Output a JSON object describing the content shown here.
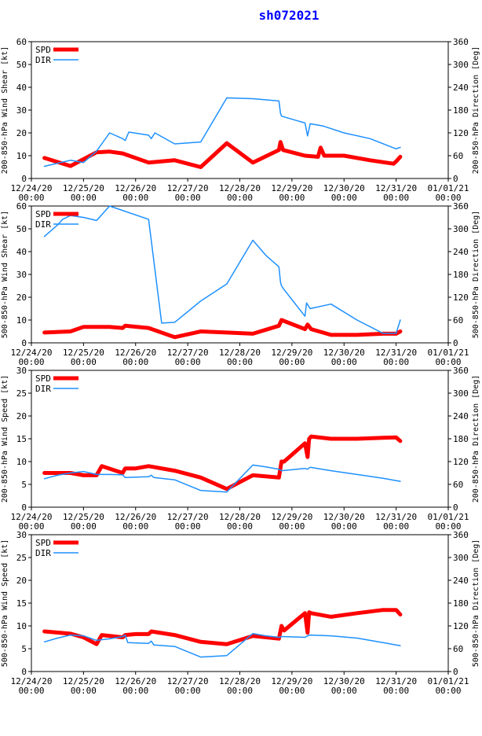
{
  "page_title": "sh072021",
  "colors": {
    "spd": "#ff0000",
    "dir": "#1e90ff",
    "title": "#0000ff",
    "axis": "#000000"
  },
  "x_ticks": [
    "12/24/20",
    "12/25/20",
    "12/26/20",
    "12/27/20",
    "12/28/20",
    "12/29/20",
    "12/30/20",
    "12/31/20",
    "01/01/21"
  ],
  "x_tick_sub": "00:00",
  "legend": {
    "spd": "SPD",
    "dir": "DIR"
  },
  "chart_data": [
    {
      "type": "line",
      "title": "",
      "ylabel": "200-850-hPa Wind Shear [kt]",
      "y2label": "200-850-hPa Direction [Deg]",
      "xlim": [
        0,
        8
      ],
      "ylim": [
        0,
        60
      ],
      "y2lim": [
        0,
        360
      ],
      "y_ticks": [
        "0",
        "10",
        "20",
        "30",
        "40",
        "50",
        "60"
      ],
      "y2_ticks": [
        "0",
        "60",
        "120",
        "180",
        "240",
        "300",
        "360"
      ],
      "series": [
        {
          "name": "SPD",
          "axis": "left",
          "x": [
            0.25,
            0.75,
            1.25,
            1.5,
            1.75,
            2.25,
            2.75,
            3.25,
            3.75,
            4.25,
            4.75,
            4.78,
            4.83,
            5.25,
            5.5,
            5.55,
            5.62,
            6.0,
            6.5,
            6.95,
            7.0,
            7.08
          ],
          "values": [
            9,
            5.5,
            11.5,
            11.8,
            11,
            7,
            8,
            5,
            15.5,
            7,
            12.5,
            16,
            12.5,
            10,
            9.5,
            13.5,
            10,
            10,
            8,
            6.5,
            7.5,
            9.5
          ]
        },
        {
          "name": "DIR",
          "axis": "right",
          "x": [
            0.25,
            0.75,
            1.0,
            1.25,
            1.5,
            1.75,
            1.8,
            1.87,
            2.25,
            2.3,
            2.37,
            2.75,
            3.25,
            3.75,
            4.25,
            4.75,
            4.78,
            4.8,
            5.25,
            5.3,
            5.35,
            5.6,
            6.0,
            6.5,
            7.0,
            7.08
          ],
          "values": [
            32,
            48,
            42,
            72,
            120,
            105,
            100,
            122,
            114,
            105,
            120,
            91,
            96,
            212,
            210,
            204,
            172,
            164,
            146,
            112,
            144,
            138,
            120,
            105,
            78,
            82
          ]
        }
      ]
    },
    {
      "type": "line",
      "title": "",
      "ylabel": "500-850-hPa Wind Shear [kt]",
      "y2label": "500-850-hPa Direction [Deg]",
      "xlim": [
        0,
        8
      ],
      "ylim": [
        0,
        60
      ],
      "y2lim": [
        0,
        360
      ],
      "y_ticks": [
        "0",
        "10",
        "20",
        "30",
        "40",
        "50",
        "60"
      ],
      "y2_ticks": [
        "0",
        "60",
        "120",
        "180",
        "240",
        "300",
        "360"
      ],
      "series": [
        {
          "name": "SPD",
          "axis": "left",
          "x": [
            0.25,
            0.75,
            1.0,
            1.5,
            1.75,
            1.8,
            2.25,
            2.75,
            3.25,
            3.75,
            4.25,
            4.75,
            4.8,
            5.25,
            5.3,
            5.37,
            5.75,
            6.25,
            6.75,
            7.0,
            7.08
          ],
          "values": [
            4.5,
            5,
            7,
            7,
            6.5,
            7.5,
            6.5,
            2.5,
            5,
            4.5,
            4,
            7.5,
            10,
            6,
            8,
            6,
            3.5,
            3.5,
            4,
            4,
            5
          ]
        },
        {
          "name": "DIR",
          "axis": "right",
          "x": [
            0.25,
            0.5,
            0.6,
            0.75,
            1.0,
            1.25,
            1.5,
            2.25,
            2.5,
            2.75,
            3.25,
            3.75,
            4.25,
            4.5,
            4.75,
            4.78,
            4.8,
            4.85,
            5.25,
            5.28,
            5.35,
            5.75,
            6.25,
            6.75,
            7.0,
            7.08
          ],
          "values": [
            280,
            310,
            325,
            335,
            330,
            322,
            360,
            325,
            52,
            54,
            110,
            155,
            270,
            230,
            200,
            160,
            150,
            140,
            70,
            105,
            90,
            102,
            60,
            25,
            25,
            60
          ]
        }
      ]
    },
    {
      "type": "line",
      "title": "",
      "ylabel": "200-850-hPa Wind Speed [kt]",
      "y2label": "200-850-hPa Direction [Deg]",
      "xlim": [
        0,
        8
      ],
      "ylim": [
        0,
        30
      ],
      "y2lim": [
        0,
        360
      ],
      "y_ticks": [
        "0",
        "5",
        "10",
        "15",
        "20",
        "25",
        "30"
      ],
      "y2_ticks": [
        "0",
        "60",
        "120",
        "180",
        "240",
        "300",
        "360"
      ],
      "series": [
        {
          "name": "SPD",
          "axis": "left",
          "x": [
            0.25,
            0.75,
            1.0,
            1.25,
            1.35,
            1.75,
            1.8,
            2.0,
            2.25,
            2.75,
            3.25,
            3.75,
            4.25,
            4.75,
            4.8,
            4.85,
            5.25,
            5.3,
            5.33,
            5.37,
            5.75,
            6.25,
            6.75,
            7.0,
            7.08
          ],
          "values": [
            7.5,
            7.5,
            7,
            7,
            9,
            7.5,
            8.5,
            8.5,
            9,
            8,
            6.5,
            4,
            7,
            6.5,
            10,
            10,
            14,
            11,
            15,
            15.5,
            15,
            15,
            15.2,
            15.3,
            14.5
          ]
        },
        {
          "name": "DIR",
          "axis": "right",
          "x": [
            0.25,
            0.5,
            0.75,
            1.0,
            1.25,
            1.5,
            1.75,
            1.8,
            2.25,
            2.3,
            2.35,
            2.75,
            3.25,
            3.75,
            4.25,
            4.5,
            4.75,
            4.8,
            5.25,
            5.3,
            5.35,
            5.75,
            6.25,
            6.75,
            7.0,
            7.08
          ],
          "values": [
            75,
            84,
            90,
            94,
            86,
            86,
            85,
            78,
            80,
            84,
            78,
            72,
            44,
            40,
            111,
            106,
            100,
            96,
            102,
            100,
            105,
            96,
            86,
            76,
            70,
            68
          ]
        }
      ]
    },
    {
      "type": "line",
      "title": "",
      "ylabel": "500-850-hPa Wind Speed [kt]",
      "y2label": "500-850-hPa Direction [Deg]",
      "xlim": [
        0,
        8
      ],
      "ylim": [
        0,
        30
      ],
      "y2lim": [
        0,
        360
      ],
      "y_ticks": [
        "0",
        "5",
        "10",
        "15",
        "20",
        "25",
        "30"
      ],
      "y2_ticks": [
        "0",
        "60",
        "120",
        "180",
        "240",
        "300",
        "360"
      ],
      "series": [
        {
          "name": "SPD",
          "axis": "left",
          "x": [
            0.25,
            0.75,
            1.0,
            1.25,
            1.35,
            1.75,
            1.8,
            2.0,
            2.25,
            2.3,
            2.75,
            3.25,
            3.75,
            4.25,
            4.75,
            4.8,
            4.85,
            5.25,
            5.3,
            5.33,
            5.37,
            5.75,
            6.25,
            6.75,
            7.0,
            7.08
          ],
          "values": [
            8.8,
            8.3,
            7.5,
            6,
            8,
            7.5,
            8,
            8.2,
            8.2,
            8.8,
            8,
            6.5,
            6,
            7.8,
            7.2,
            10,
            9,
            12.8,
            8.5,
            13,
            12.8,
            12,
            12.8,
            13.5,
            13.5,
            12.5
          ]
        },
        {
          "name": "DIR",
          "axis": "right",
          "x": [
            0.25,
            0.5,
            0.75,
            1.0,
            1.25,
            1.5,
            1.75,
            1.8,
            1.85,
            2.25,
            2.3,
            2.35,
            2.75,
            3.25,
            3.75,
            4.25,
            4.5,
            4.75,
            4.8,
            5.25,
            5.3,
            5.35,
            5.75,
            6.25,
            6.75,
            7.0,
            7.08
          ],
          "values": [
            78,
            88,
            96,
            94,
            82,
            86,
            92,
            96,
            76,
            74,
            80,
            70,
            66,
            38,
            42,
            100,
            94,
            90,
            92,
            90,
            94,
            96,
            94,
            88,
            76,
            70,
            68
          ]
        }
      ]
    }
  ]
}
